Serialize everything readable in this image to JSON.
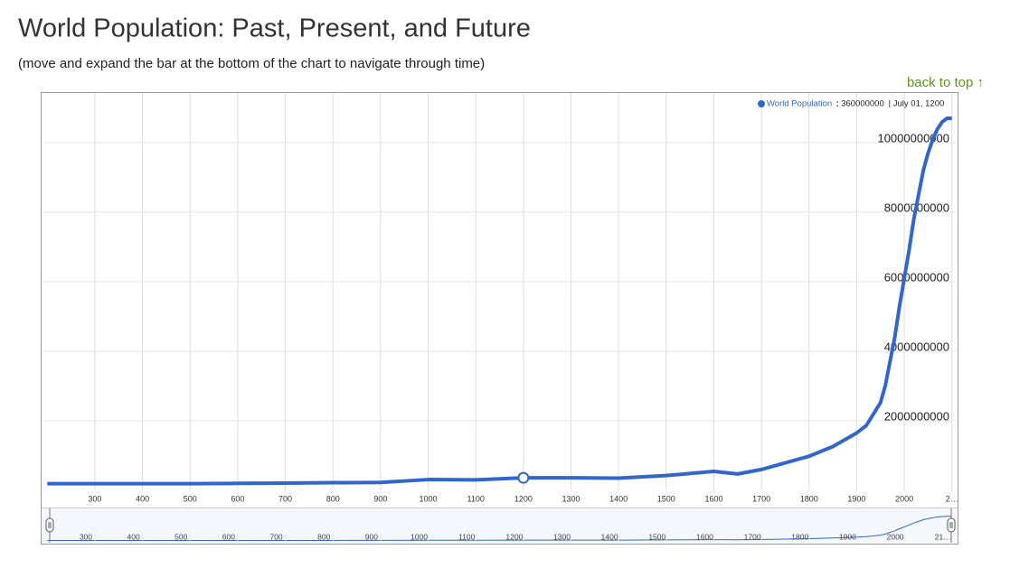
{
  "title": "World Population: Past, Present, and Future",
  "subtitle": "(move and expand the bar at the bottom of the chart to navigate through time)",
  "back_to_top": "back to top ↑",
  "chart_data": {
    "type": "line",
    "x": [
      200,
      400,
      500,
      600,
      700,
      800,
      900,
      1000,
      1100,
      1200,
      1300,
      1400,
      1500,
      1600,
      1650,
      1700,
      1750,
      1800,
      1850,
      1900,
      1920,
      1940,
      1950,
      1960,
      1970,
      1980,
      1990,
      2000,
      2010,
      2020,
      2030,
      2040,
      2050,
      2060,
      2070,
      2080,
      2090,
      2100
    ],
    "series": [
      {
        "name": "World Population",
        "color": "#3366cc",
        "values": [
          190000000,
          190000000,
          190000000,
          200000000,
          207000000,
          220000000,
          226000000,
          310000000,
          301000000,
          360000000,
          360000000,
          350000000,
          425000000,
          545000000,
          470000000,
          600000000,
          790000000,
          980000000,
          1260000000,
          1650000000,
          1860000000,
          2300000000,
          2520000000,
          3000000000,
          3700000000,
          4400000000,
          5300000000,
          6100000000,
          6900000000,
          7800000000,
          8500000000,
          9200000000,
          9700000000,
          10100000000,
          10400000000,
          10600000000,
          10700000000,
          10700000000
        ]
      }
    ],
    "highlight_date": "July 01, 1200",
    "xlim": [
      190,
      2110
    ],
    "xticks": [
      300,
      400,
      500,
      600,
      700,
      800,
      900,
      1000,
      1100,
      1200,
      1300,
      1400,
      1500,
      1600,
      1700,
      1800,
      1900,
      2000,
      {
        "value": 2100,
        "label": "2…"
      }
    ],
    "ylim": [
      0,
      11400000000
    ],
    "yticks": [
      2000000000,
      4000000000,
      6000000000,
      8000000000,
      10000000000
    ],
    "grid": true,
    "navigator_xticks": [
      300,
      400,
      500,
      600,
      700,
      800,
      900,
      1000,
      1100,
      1200,
      1300,
      1400,
      1500,
      1600,
      1700,
      1800,
      1900,
      2000,
      {
        "value": 2100,
        "label": "21…"
      }
    ]
  }
}
